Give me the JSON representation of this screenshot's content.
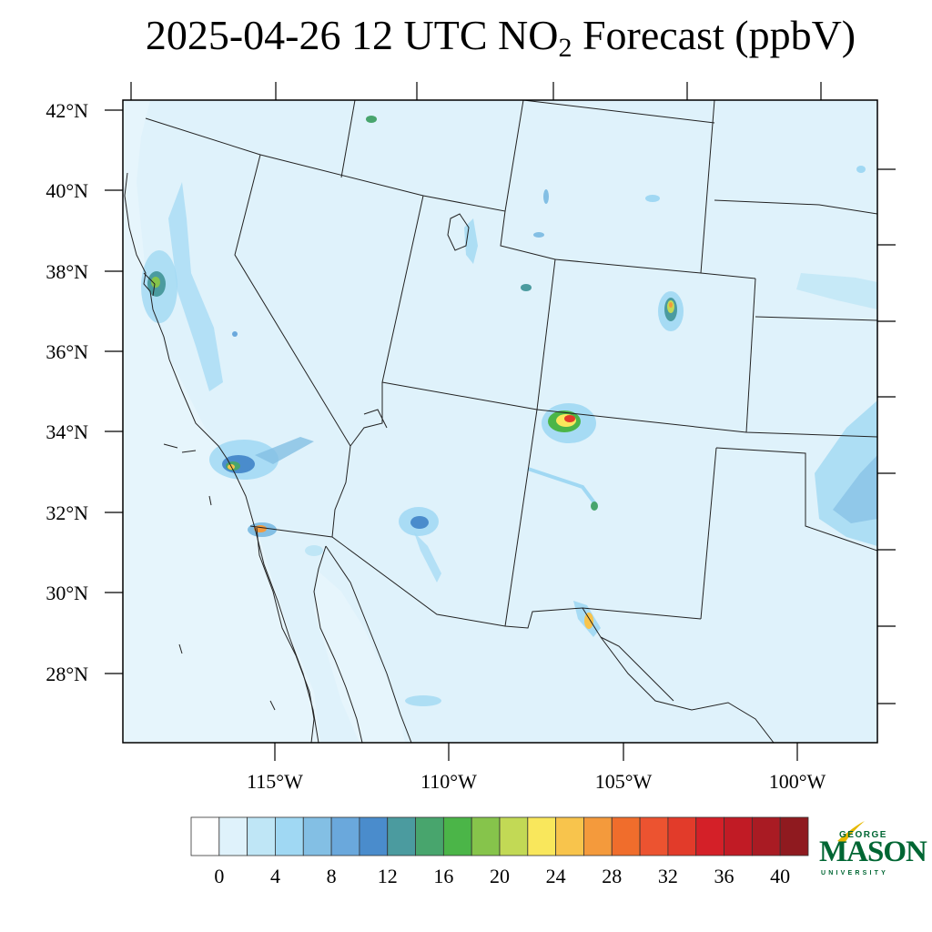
{
  "title": {
    "prefix": "2025-04-26 12 UTC NO",
    "subscript": "2",
    "suffix": " Forecast (ppbV)"
  },
  "axes": {
    "lat_labels": [
      "42°N",
      "40°N",
      "38°N",
      "36°N",
      "34°N",
      "32°N",
      "30°N",
      "28°N"
    ],
    "lon_labels": [
      "115°W",
      "110°W",
      "105°W",
      "100°W"
    ]
  },
  "colorbar": {
    "tick_labels": [
      "0",
      "4",
      "8",
      "12",
      "16",
      "20",
      "24",
      "28",
      "32",
      "36",
      "40"
    ],
    "colors": [
      "#ffffff",
      "#dff2fb",
      "#bfe6f6",
      "#a0d8f3",
      "#83bfe4",
      "#6aa8dc",
      "#4a8ccc",
      "#4b9b9f",
      "#48a56d",
      "#4bb548",
      "#86c44b",
      "#c2d955",
      "#f9e75c",
      "#f8c44c",
      "#f49a3c",
      "#f06d2c",
      "#ec5330",
      "#e23b2a",
      "#d42028",
      "#c11b25",
      "#a91b23",
      "#8f1a1f"
    ]
  },
  "logo": {
    "line1": "GEORGE",
    "line2": "MASON",
    "line3": "UNIVERSITY"
  },
  "colors": {
    "background_field": "#dff2fb",
    "border_lines": "#333333",
    "logo_green": "#006633",
    "logo_gold": "#e6b800"
  }
}
